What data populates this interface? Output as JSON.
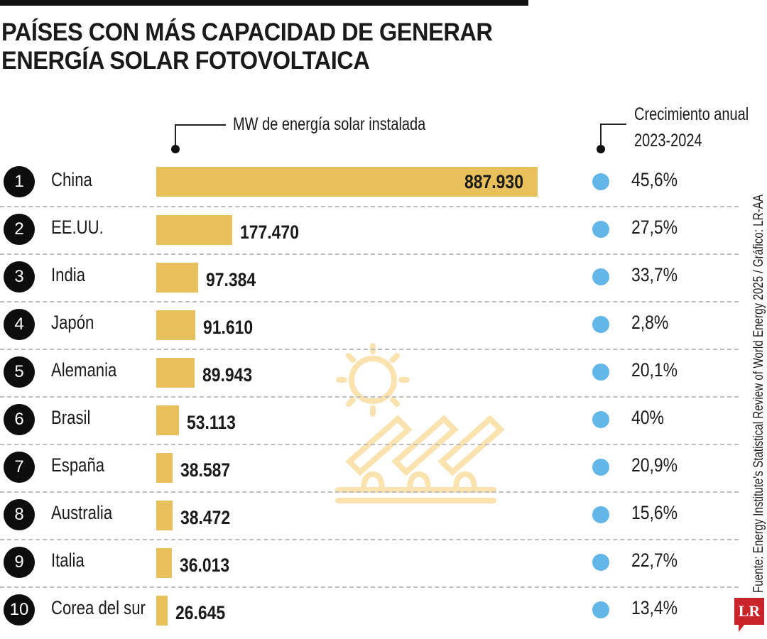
{
  "title_line1": "PAÍSES CON MÁS CAPACIDAD DE GENERAR",
  "title_line2": "ENERGÍA SOLAR FOTOVOLTAICA",
  "source": "Fuente: Energy Institute's Statistical Review of World Energy 2025  / Gráfico: LR-AA",
  "logo": "LR",
  "colors": {
    "bar": "#e8c05c",
    "growth_dot": "#63b6e8",
    "logo": "#c8242a"
  },
  "chart_data": {
    "type": "bar",
    "orientation": "horizontal",
    "value_label": "MW de energía solar instalada",
    "growth_label_line1": "Crecimiento anual",
    "growth_label_line2": "2023-2024",
    "ranks": [
      "1",
      "2",
      "3",
      "4",
      "5",
      "6",
      "7",
      "8",
      "9",
      "10"
    ],
    "categories": [
      "China",
      "EE.UU.",
      "India",
      "Japón",
      "Alemania",
      "Brasil",
      "España",
      "Australia",
      "Italia",
      "Corea del sur"
    ],
    "values": [
      887930,
      177470,
      97384,
      91610,
      89943,
      53113,
      38587,
      38472,
      36013,
      26645
    ],
    "value_labels": [
      "887.930",
      "177.470",
      "97.384",
      "91.610",
      "89.943",
      "53.113",
      "38.587",
      "38.472",
      "36.013",
      "26.645"
    ],
    "growth": [
      "45,6%",
      "27,5%",
      "33,7%",
      "2,8%",
      "20,1%",
      "40%",
      "20,9%",
      "15,6%",
      "22,7%",
      "13,4%"
    ]
  }
}
